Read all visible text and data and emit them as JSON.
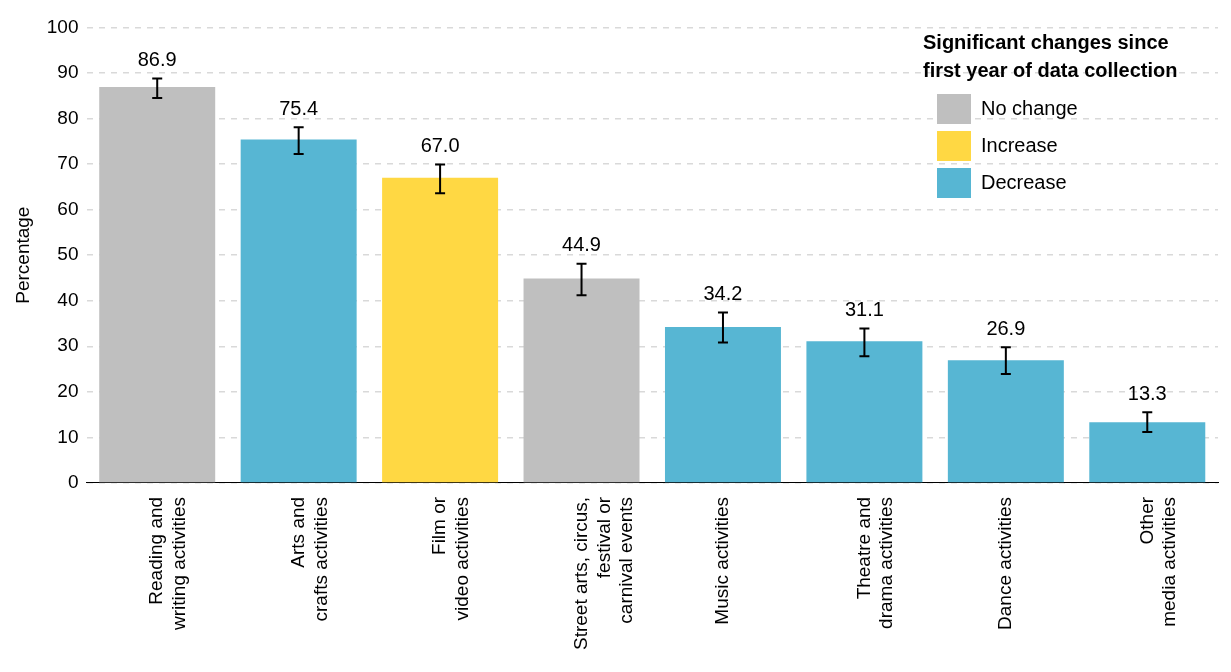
{
  "chart_data": {
    "type": "bar",
    "ylabel": "Percentage",
    "legend_title": "Significant changes since first year of data collection",
    "categories": [
      "Reading and\nwriting activities",
      "Arts and\ncrafts activities",
      "Film or\nvideo activities",
      "Street arts, circus,\nfestival or\ncarnival events",
      "Music activities",
      "Theatre and\ndrama activities",
      "Dance activities",
      "Other\nmedia activities"
    ],
    "series": [
      {
        "name": "No change",
        "color": "#bfbfbf",
        "values": [
          86.9,
          null,
          null,
          44.9,
          null,
          null,
          null,
          null
        ],
        "value_labels": [
          "86.9",
          null,
          null,
          "44.9",
          null,
          null,
          null,
          null
        ],
        "errors": [
          [
            84.5,
            88.8
          ],
          null,
          null,
          [
            41.2,
            48.1
          ],
          null,
          null,
          null,
          null
        ]
      },
      {
        "name": "Increase",
        "color": "#ffd843",
        "values": [
          null,
          null,
          67.0,
          null,
          null,
          null,
          null,
          null
        ],
        "value_labels": [
          null,
          null,
          "67.0",
          null,
          null,
          null,
          null,
          null
        ],
        "errors": [
          null,
          null,
          [
            63.6,
            69.9
          ],
          null,
          null,
          null,
          null,
          null
        ]
      },
      {
        "name": "Decrease",
        "color": "#57b6d3",
        "values": [
          null,
          75.4,
          null,
          null,
          34.2,
          31.1,
          26.9,
          13.3
        ],
        "value_labels": [
          null,
          "75.4",
          null,
          null,
          "34.2",
          "31.1",
          "26.9",
          "13.3"
        ],
        "errors": [
          null,
          [
            72.2,
            78.1
          ],
          null,
          null,
          [
            30.8,
            37.4
          ],
          [
            27.8,
            33.9
          ],
          [
            23.9,
            29.8
          ],
          [
            11.2,
            15.5
          ]
        ]
      }
    ],
    "stacked": true,
    "ylim": [
      0,
      100
    ],
    "yticks": [
      0,
      10,
      20,
      30,
      40,
      50,
      60,
      70,
      80,
      90,
      100
    ],
    "grid": "y",
    "legend": "top right"
  }
}
